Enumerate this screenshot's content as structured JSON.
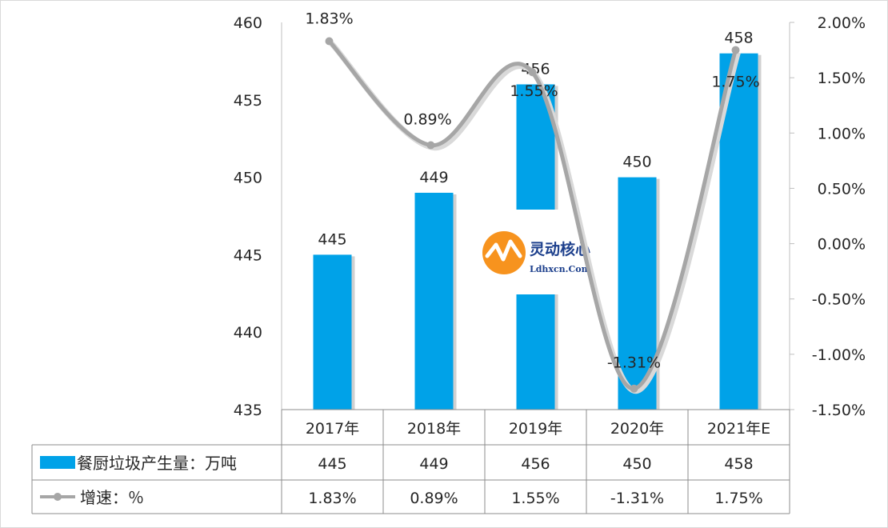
{
  "chart_data": {
    "type": "bar",
    "categories": [
      "2017年",
      "2018年",
      "2019年",
      "2020年",
      "2021年E"
    ],
    "series": [
      {
        "name": "餐厨垃圾产生量：万吨",
        "type": "bar",
        "axis": "left",
        "values": [
          445,
          449,
          456,
          450,
          458
        ],
        "labels": [
          "445",
          "449",
          "456",
          "450",
          "458"
        ],
        "table_values": [
          "445",
          "449",
          "456",
          "450",
          "458"
        ],
        "color": "#00a2e8"
      },
      {
        "name": "增速：％",
        "type": "line",
        "axis": "right",
        "values": [
          1.83,
          0.89,
          1.55,
          -1.31,
          1.75
        ],
        "labels": [
          "1.83%",
          "0.89%",
          "1.55%",
          "-1.31%",
          "1.75%"
        ],
        "table_values": [
          "1.83%",
          "0.89%",
          "1.55%",
          "-1.31%",
          "1.75%"
        ],
        "color": "#a6a6a6"
      }
    ],
    "y_left": {
      "ylim": [
        435,
        460
      ],
      "ticks": [
        "435",
        "440",
        "445",
        "450",
        "455",
        "460"
      ]
    },
    "y_right": {
      "ylim": [
        -1.5,
        2.0
      ],
      "ticks": [
        "-1.50%",
        "-1.00%",
        "-0.50%",
        "0.00%",
        "0.50%",
        "1.00%",
        "1.50%",
        "2.00%"
      ]
    },
    "grid": false,
    "legend": "data-table-below"
  },
  "watermark": {
    "title": "灵动核心",
    "subtitle": "Ldhxcn.Com"
  }
}
